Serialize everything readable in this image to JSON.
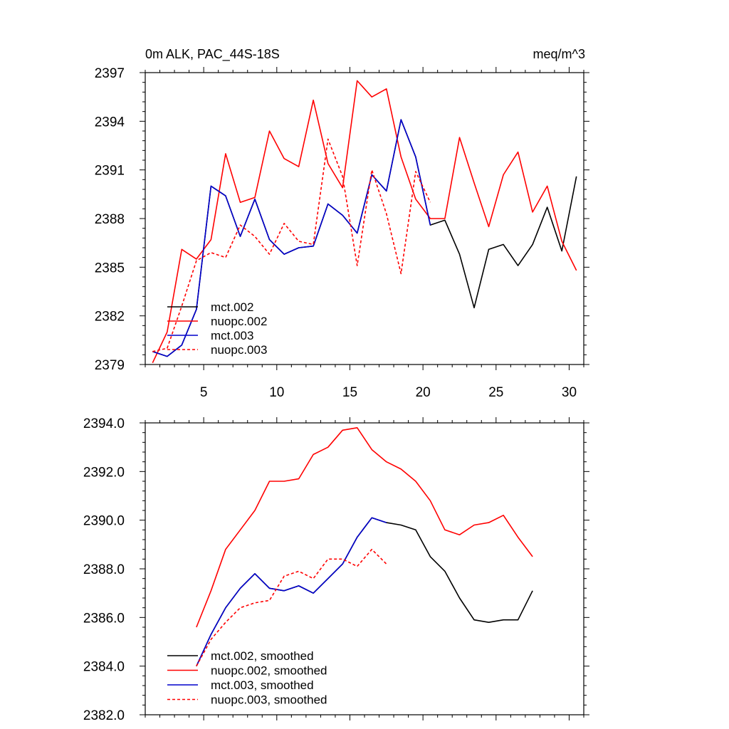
{
  "chart_data": [
    {
      "type": "line",
      "title": "0m ALK, PAC_44S-18S",
      "units": "meq/m^3",
      "xlim": [
        1,
        31
      ],
      "ylim": [
        2379,
        2397
      ],
      "y_tick_labels": [
        "2379",
        "2382",
        "2385",
        "2388",
        "2391",
        "2394",
        "2397"
      ],
      "x_tick_labels": [
        "5",
        "10",
        "15",
        "20",
        "25",
        "30"
      ],
      "series": [
        {
          "name": "mct.002",
          "color": "#000000",
          "dash": "solid",
          "x": [
            1.5,
            2.5,
            3.5,
            4.5,
            5.5,
            6.5,
            7.5,
            8.5,
            9.5,
            10.5,
            11.5,
            12.5,
            13.5,
            14.5,
            15.5,
            16.5,
            17.5,
            18.5,
            19.5,
            20.5,
            21.5,
            22.5,
            23.5,
            24.5,
            25.5,
            26.5,
            27.5,
            28.5,
            29.5,
            30.5
          ],
          "y": [
            2379.8,
            2379.5,
            2380.2,
            2382.4,
            2390.0,
            2389.4,
            2386.9,
            2389.2,
            2386.7,
            2385.8,
            2386.2,
            2386.3,
            2388.9,
            2388.2,
            2387.1,
            2390.7,
            2389.7,
            2394.1,
            2391.8,
            2387.6,
            2387.9,
            2385.8,
            2382.5,
            2386.1,
            2386.4,
            2385.1,
            2386.4,
            2388.7,
            2386.0,
            2390.6
          ]
        },
        {
          "name": "nuopc.002",
          "color": "#ff0000",
          "dash": "solid",
          "x": [
            1.5,
            2.5,
            3.5,
            4.5,
            5.5,
            6.5,
            7.5,
            8.5,
            9.5,
            10.5,
            11.5,
            12.5,
            13.5,
            14.5,
            15.5,
            16.5,
            17.5,
            18.5,
            19.5,
            20.5,
            21.5,
            22.5,
            23.5,
            24.5,
            25.5,
            26.5,
            27.5,
            28.5,
            29.5,
            30.5
          ],
          "y": [
            2379.1,
            2381.0,
            2386.1,
            2385.5,
            2386.7,
            2392.0,
            2389.0,
            2389.3,
            2393.4,
            2391.7,
            2391.2,
            2395.3,
            2391.4,
            2389.9,
            2396.5,
            2395.5,
            2396.0,
            2391.8,
            2389.2,
            2388.0,
            2388.0,
            2393.0,
            2390.2,
            2387.5,
            2390.7,
            2392.1,
            2388.4,
            2390.0,
            2386.6,
            2384.8
          ]
        },
        {
          "name": "mct.003",
          "color": "#0000cc",
          "dash": "solid",
          "x": [
            1.5,
            2.5,
            3.5,
            4.5,
            5.5,
            6.5,
            7.5,
            8.5,
            9.5,
            10.5,
            11.5,
            12.5,
            13.5,
            14.5,
            15.5,
            16.5,
            17.5,
            18.5,
            19.5,
            20.5
          ],
          "y": [
            2379.8,
            2379.5,
            2380.2,
            2382.4,
            2390.0,
            2389.4,
            2386.9,
            2389.2,
            2386.7,
            2385.8,
            2386.2,
            2386.3,
            2388.9,
            2388.2,
            2387.1,
            2390.7,
            2389.7,
            2394.1,
            2391.8,
            2387.6
          ]
        },
        {
          "name": "nuopc.003",
          "color": "#ff0000",
          "dash": "dashed",
          "x": [
            1.5,
            2.5,
            3.5,
            4.5,
            5.5,
            6.5,
            7.5,
            8.5,
            9.5,
            10.5,
            11.5,
            12.5,
            13.5,
            14.5,
            15.5,
            16.5,
            17.5,
            18.5,
            19.5,
            20.5
          ],
          "y": [
            2379.8,
            2380.0,
            2382.6,
            2385.4,
            2385.9,
            2385.6,
            2387.6,
            2386.9,
            2385.8,
            2387.7,
            2386.6,
            2386.4,
            2392.9,
            2390.6,
            2385.1,
            2391.0,
            2388.3,
            2384.6,
            2390.9,
            2389.0
          ]
        }
      ]
    },
    {
      "type": "line",
      "title": "",
      "xlim": [
        1,
        31
      ],
      "ylim": [
        2382,
        2394
      ],
      "y_tick_labels": [
        "2382.0",
        "2384.0",
        "2386.0",
        "2388.0",
        "2390.0",
        "2392.0",
        "2394.0"
      ],
      "series": [
        {
          "name": "mct.002, smoothed",
          "color": "#000000",
          "dash": "solid",
          "x": [
            4.5,
            5.5,
            6.5,
            7.5,
            8.5,
            9.5,
            10.5,
            11.5,
            12.5,
            13.5,
            14.5,
            15.5,
            16.5,
            17.5,
            18.5,
            19.5,
            20.5,
            21.5,
            22.5,
            23.5,
            24.5,
            25.5,
            26.5,
            27.5
          ],
          "y": [
            2384.0,
            2385.3,
            2386.4,
            2387.2,
            2387.8,
            2387.2,
            2387.1,
            2387.3,
            2387.0,
            2387.6,
            2388.2,
            2389.3,
            2390.1,
            2389.9,
            2389.8,
            2389.6,
            2388.5,
            2387.9,
            2386.8,
            2385.9,
            2385.8,
            2385.9,
            2385.9,
            2387.1
          ]
        },
        {
          "name": "nuopc.002, smoothed",
          "color": "#ff0000",
          "dash": "solid",
          "x": [
            4.5,
            5.5,
            6.5,
            7.5,
            8.5,
            9.5,
            10.5,
            11.5,
            12.5,
            13.5,
            14.5,
            15.5,
            16.5,
            17.5,
            18.5,
            19.5,
            20.5,
            21.5,
            22.5,
            23.5,
            24.5,
            25.5,
            26.5,
            27.5
          ],
          "y": [
            2385.6,
            2387.1,
            2388.8,
            2389.6,
            2390.4,
            2391.6,
            2391.6,
            2391.7,
            2392.7,
            2393.0,
            2393.7,
            2393.8,
            2392.9,
            2392.4,
            2392.1,
            2391.6,
            2390.8,
            2389.6,
            2389.4,
            2389.8,
            2389.9,
            2390.2,
            2389.3,
            2388.5
          ]
        },
        {
          "name": "mct.003, smoothed",
          "color": "#0000cc",
          "dash": "solid",
          "x": [
            4.5,
            5.5,
            6.5,
            7.5,
            8.5,
            9.5,
            10.5,
            11.5,
            12.5,
            13.5,
            14.5,
            15.5,
            16.5,
            17.5
          ],
          "y": [
            2384.0,
            2385.3,
            2386.4,
            2387.2,
            2387.8,
            2387.2,
            2387.1,
            2387.3,
            2387.0,
            2387.6,
            2388.2,
            2389.3,
            2390.1,
            2389.9
          ]
        },
        {
          "name": "nuopc.003, smoothed",
          "color": "#ff0000",
          "dash": "dashed",
          "x": [
            4.5,
            5.5,
            6.5,
            7.5,
            8.5,
            9.5,
            10.5,
            11.5,
            12.5,
            13.5,
            14.5,
            15.5,
            16.5,
            17.5
          ],
          "y": [
            2384.0,
            2385.1,
            2385.8,
            2386.4,
            2386.6,
            2386.7,
            2387.7,
            2387.9,
            2387.6,
            2388.4,
            2388.4,
            2388.1,
            2388.8,
            2388.2
          ]
        }
      ]
    }
  ]
}
